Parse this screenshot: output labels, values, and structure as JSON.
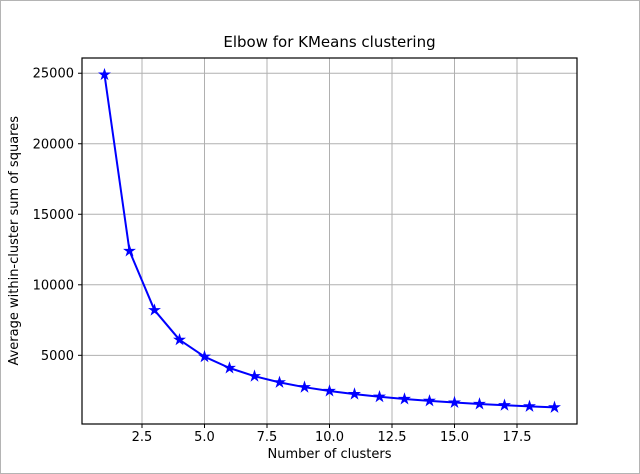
{
  "figure": {
    "background": "#ffffff",
    "border_color": "#b4b4b4",
    "frame_color": "#000000"
  },
  "chart_data": {
    "type": "line",
    "title": "Elbow for KMeans clustering",
    "xlabel": "Number of clusters",
    "ylabel": "Average within-cluster sum of squares",
    "x": [
      1,
      2,
      3,
      4,
      5,
      6,
      7,
      8,
      9,
      10,
      11,
      12,
      13,
      14,
      15,
      16,
      17,
      18,
      19
    ],
    "y": [
      24900,
      12400,
      8200,
      6100,
      4900,
      4100,
      3520,
      3080,
      2740,
      2470,
      2250,
      2060,
      1900,
      1770,
      1650,
      1550,
      1460,
      1380,
      1310
    ],
    "line_color": "#0000ff",
    "marker": "star",
    "marker_color": "#0000ff",
    "xlim": [
      0.1,
      19.9
    ],
    "ylim": [
      130,
      26080
    ],
    "xticks": [
      2.5,
      5.0,
      7.5,
      10.0,
      12.5,
      15.0,
      17.5
    ],
    "xtick_labels": [
      "2.5",
      "5.0",
      "7.5",
      "10.0",
      "12.5",
      "15.0",
      "17.5"
    ],
    "yticks": [
      5000,
      10000,
      15000,
      20000,
      25000
    ],
    "ytick_labels": [
      "5000",
      "10000",
      "15000",
      "20000",
      "25000"
    ],
    "grid": true,
    "grid_color": "#b0b0b0",
    "tick_color": "#000000",
    "legend": null
  }
}
